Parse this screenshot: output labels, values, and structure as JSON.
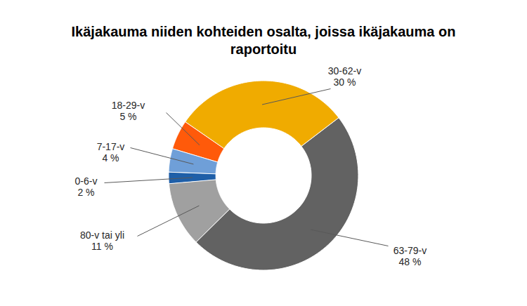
{
  "chart_data": {
    "type": "donut",
    "title": "Ikäjakauma niiden kohteiden osalta, joissa ikäjakauma on raportoitu",
    "categories": [
      "0-6-v",
      "7-17-v",
      "18-29-v",
      "30-62-v",
      "63-79-v",
      "80-v tai yli"
    ],
    "values": [
      2,
      4,
      5,
      30,
      48,
      11
    ],
    "value_labels": [
      "2 %",
      "4 %",
      "5 %",
      "30 %",
      "48 %",
      "11 %"
    ],
    "colors": [
      "#1f5fa8",
      "#6f9fd8",
      "#ff5a0a",
      "#f0ab00",
      "#626262",
      "#a0a0a0"
    ],
    "data_labels": true
  }
}
